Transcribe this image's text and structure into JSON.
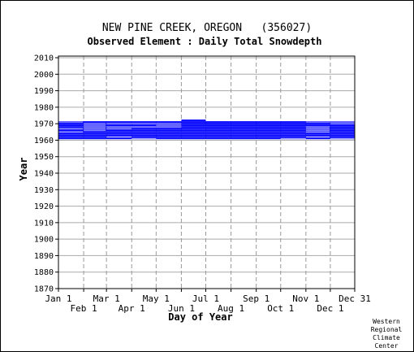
{
  "chart_data": {
    "type": "bar",
    "title": "NEW PINE CREEK, OREGON   (356027)",
    "subtitle": "Observed Element : Daily Total Snowdepth",
    "xlabel": "Day of Year",
    "ylabel": "Year",
    "ylim": [
      1870,
      2011
    ],
    "yticks": [
      1870,
      1880,
      1890,
      1900,
      1910,
      1920,
      1930,
      1940,
      1950,
      1960,
      1970,
      1980,
      1990,
      2000,
      2010
    ],
    "xlim_day": [
      1,
      365
    ],
    "xticks_top": [
      {
        "label": "Jan 1",
        "day": 1
      },
      {
        "label": "Mar 1",
        "day": 60
      },
      {
        "label": "May 1",
        "day": 121
      },
      {
        "label": "Jul 1",
        "day": 182
      },
      {
        "label": "Sep 1",
        "day": 244
      },
      {
        "label": "Nov 1",
        "day": 305
      },
      {
        "label": "Dec 31",
        "day": 365
      }
    ],
    "xticks_bottom": [
      {
        "label": "Feb 1",
        "day": 32
      },
      {
        "label": "Apr 1",
        "day": 91
      },
      {
        "label": "Jun 1",
        "day": 152
      },
      {
        "label": "Aug 1",
        "day": 213
      },
      {
        "label": "Oct 1",
        "day": 274
      },
      {
        "label": "Dec 1",
        "day": 335
      }
    ],
    "series": [
      {
        "color": "#0000ff",
        "records": [
          {
            "year": 1961,
            "start": 1,
            "end": 365
          },
          {
            "year": 1962,
            "start": 1,
            "end": 365
          },
          {
            "year": 1963,
            "start": 1,
            "end": 365
          },
          {
            "year": 1964,
            "start": 1,
            "end": 365
          },
          {
            "year": 1965,
            "start": 1,
            "end": 365
          },
          {
            "year": 1966,
            "start": 1,
            "end": 365
          },
          {
            "year": 1967,
            "start": 1,
            "end": 365
          },
          {
            "year": 1968,
            "start": 1,
            "end": 365
          },
          {
            "year": 1969,
            "start": 1,
            "end": 365
          },
          {
            "year": 1970,
            "start": 1,
            "end": 365
          },
          {
            "year": 1971,
            "start": 1,
            "end": 365
          },
          {
            "year": 1972,
            "start": 152,
            "end": 182
          }
        ],
        "gaps": [
          {
            "year": 1970,
            "start": 32,
            "end": 59
          },
          {
            "year": 1969,
            "start": 32,
            "end": 59
          },
          {
            "year": 1968,
            "start": 32,
            "end": 59
          },
          {
            "year": 1967,
            "start": 32,
            "end": 59
          },
          {
            "year": 1966,
            "start": 32,
            "end": 59
          },
          {
            "year": 1965,
            "start": 1,
            "end": 31
          },
          {
            "year": 1971,
            "start": 305,
            "end": 365
          },
          {
            "year": 1970,
            "start": 335,
            "end": 365
          },
          {
            "year": 1968,
            "start": 305,
            "end": 334
          },
          {
            "year": 1967,
            "start": 305,
            "end": 334
          },
          {
            "year": 1966,
            "start": 305,
            "end": 334
          },
          {
            "year": 1965,
            "start": 305,
            "end": 334
          },
          {
            "year": 1971,
            "start": 1,
            "end": 31
          },
          {
            "year": 1967,
            "start": 1,
            "end": 31
          },
          {
            "year": 1970,
            "start": 60,
            "end": 152
          },
          {
            "year": 1969,
            "start": 121,
            "end": 152
          },
          {
            "year": 1968,
            "start": 60,
            "end": 152
          },
          {
            "year": 1967,
            "start": 60,
            "end": 91
          },
          {
            "year": 1962,
            "start": 60,
            "end": 91
          },
          {
            "year": 1961,
            "start": 91,
            "end": 121
          },
          {
            "year": 1961,
            "start": 335,
            "end": 365
          },
          {
            "year": 1961,
            "start": 274,
            "end": 305
          },
          {
            "year": 1962,
            "start": 305,
            "end": 334
          }
        ]
      }
    ],
    "grid": true,
    "credit": [
      "Western",
      "Regional",
      "Climate",
      "Center"
    ]
  }
}
